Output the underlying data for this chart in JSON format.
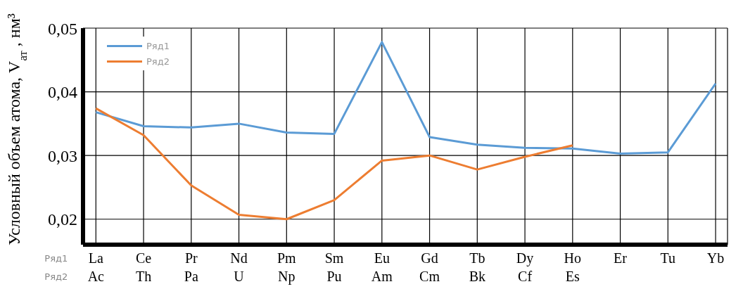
{
  "chart_data": {
    "type": "line",
    "ylabel": "Условный объем атома, V$_{ат}$ , нм³",
    "categories": [
      "La\nAc",
      "Ce\nTh",
      "Pr\nPa",
      "Nd\nU",
      "Pm\nNp",
      "Sm\nPu",
      "Eu\nAm",
      "Gd\nCm",
      "Tb\nBk",
      "Dy\nCf",
      "Ho\nEs",
      "Er",
      "Tu",
      "Yb"
    ],
    "series": [
      {
        "name": "Ряд1",
        "color": "#5b9bd5",
        "values": [
          0.0368,
          0.0346,
          0.0344,
          0.035,
          0.0336,
          0.0334,
          0.0478,
          0.0329,
          0.0317,
          0.0312,
          0.0311,
          0.0303,
          0.0305,
          0.0413
        ]
      },
      {
        "name": "Ряд2",
        "color": "#ed7d31",
        "values": [
          0.0374,
          0.0332,
          0.0253,
          0.0207,
          0.02,
          0.023,
          0.0292,
          0.03,
          0.0278,
          0.0298,
          0.0316,
          null,
          null,
          null
        ]
      }
    ],
    "ylim": [
      0.016,
      0.05
    ],
    "yticks": [
      {
        "value": 0.02,
        "label": "0,02"
      },
      {
        "value": 0.03,
        "label": "0,03"
      },
      {
        "value": 0.04,
        "label": "0,04"
      },
      {
        "value": 0.05,
        "label": "0,05"
      }
    ],
    "grid": true,
    "legend": "top left",
    "marker": "none",
    "line_style": "solid"
  }
}
